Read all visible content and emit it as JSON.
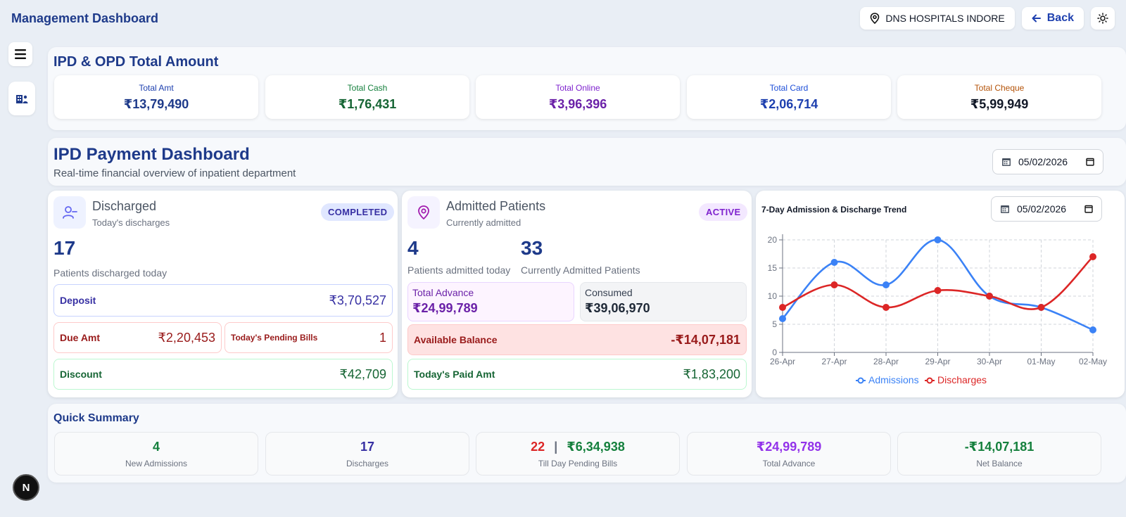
{
  "header": {
    "title": "Management Dashboard",
    "hospital": "DNS HOSPITALS INDORE",
    "back_label": "Back"
  },
  "sidebar": {
    "badge": "N"
  },
  "totals": {
    "title": "IPD & OPD Total Amount",
    "cards": [
      {
        "label": "Total Amt",
        "value": "₹13,79,490",
        "label_color": "#1e40af",
        "value_color": "#1e3a8a"
      },
      {
        "label": "Total Cash",
        "value": "₹1,76,431",
        "label_color": "#15803d",
        "value_color": "#166534"
      },
      {
        "label": "Total Online",
        "value": "₹3,96,396",
        "label_color": "#7e22ce",
        "value_color": "#6b21a8"
      },
      {
        "label": "Total Card",
        "value": "₹2,06,714",
        "label_color": "#1d4ed8",
        "value_color": "#1e40af"
      },
      {
        "label": "Total Cheque",
        "value": "₹5,99,949",
        "label_color": "#b45309",
        "value_color": "#111827"
      }
    ]
  },
  "ipd": {
    "title": "IPD Payment Dashboard",
    "subtitle": "Real-time financial overview of inpatient department",
    "date": "05/02/2026"
  },
  "discharged": {
    "title": "Discharged",
    "subtitle": "Today's discharges",
    "badge": "COMPLETED",
    "count": "17",
    "count_label": "Patients discharged today",
    "deposit_label": "Deposit",
    "deposit_value": "₹3,70,527",
    "due_label": "Due Amt",
    "due_value": "₹2,20,453",
    "pending_label": "Today's Pending Bills",
    "pending_value": "1",
    "discount_label": "Discount",
    "discount_value": "₹42,709"
  },
  "admitted": {
    "title": "Admitted Patients",
    "subtitle": "Currently admitted",
    "badge": "ACTIVE",
    "today_count": "4",
    "today_label": "Patients admitted today",
    "current_count": "33",
    "current_label": "Currently Admitted Patients",
    "advance_label": "Total Advance",
    "advance_value": "₹24,99,789",
    "consumed_label": "Consumed",
    "consumed_value": "₹39,06,970",
    "balance_label": "Available Balance",
    "balance_value": "-₹14,07,181",
    "paid_label": "Today's Paid Amt",
    "paid_value": "₹1,83,200"
  },
  "chart_data": {
    "type": "line",
    "title": "7-Day Admission & Discharge Trend",
    "date": "05/02/2026",
    "categories": [
      "26-Apr",
      "27-Apr",
      "28-Apr",
      "29-Apr",
      "30-Apr",
      "01-May",
      "02-May"
    ],
    "series": [
      {
        "name": "Admissions",
        "values": [
          6,
          16,
          12,
          20,
          10,
          8,
          4
        ],
        "color": "#3b82f6"
      },
      {
        "name": "Discharges",
        "values": [
          8,
          12,
          8,
          11,
          10,
          8,
          17
        ],
        "color": "#dc2626"
      }
    ],
    "yticks": [
      "0",
      "5",
      "10",
      "15",
      "20"
    ],
    "ylim": [
      0,
      20
    ],
    "grid": true,
    "legend": "bottom"
  },
  "summary": {
    "title": "Quick Summary",
    "new_admissions": "4",
    "new_admissions_label": "New Admissions",
    "discharges": "17",
    "discharges_label": "Discharges",
    "pending_count": "22",
    "pending_sep": "|",
    "pending_amount": "₹6,34,938",
    "pending_label": "Till Day Pending Bills",
    "total_advance": "₹24,99,789",
    "total_advance_label": "Total Advance",
    "net_balance": "-₹14,07,181",
    "net_balance_label": "Net Balance"
  }
}
